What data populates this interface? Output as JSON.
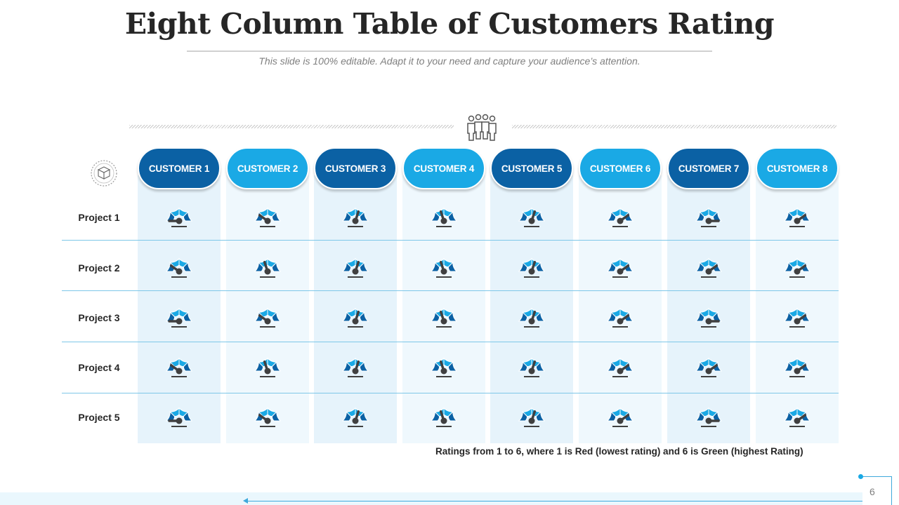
{
  "slide": {
    "title": "Eight Column Table of Customers Rating",
    "subtitle": "This slide is 100% editable. Adapt it to your need and capture your audience’s attention.",
    "page_number": "6",
    "footnote": "Ratings from 1 to 6, where 1 is Red (lowest rating) and 6 is Green (highest Rating)"
  },
  "colors": {
    "header_dark": "#0b61a4",
    "header_light": "#1aa9e5",
    "gauge_dark": "#0b61a4",
    "gauge_light": "#1aa9e5",
    "needle": "#404040"
  },
  "icons": {
    "team": "team-people-icon",
    "cube": "cube-dial-icon",
    "gauge": "speedometer-gauge-icon"
  },
  "table": {
    "customers": [
      "CUSTOMER 1",
      "CUSTOMER 2",
      "CUSTOMER 3",
      "CUSTOMER 4",
      "CUSTOMER 5",
      "CUSTOMER 6",
      "CUSTOMER 7",
      "CUSTOMER 8"
    ],
    "projects": [
      "Project 1",
      "Project 2",
      "Project 3",
      "Project 4",
      "Project 5"
    ],
    "ratings": [
      [
        1,
        2,
        4,
        3,
        4,
        5,
        6,
        5
      ],
      [
        2,
        3,
        4,
        3,
        4,
        5,
        5,
        5
      ],
      [
        1,
        2,
        4,
        3,
        4,
        5,
        6,
        5
      ],
      [
        2,
        3,
        4,
        3,
        4,
        5,
        5,
        5
      ],
      [
        1,
        2,
        4,
        3,
        4,
        5,
        6,
        5
      ]
    ],
    "rating_scale": [
      1,
      6
    ]
  }
}
